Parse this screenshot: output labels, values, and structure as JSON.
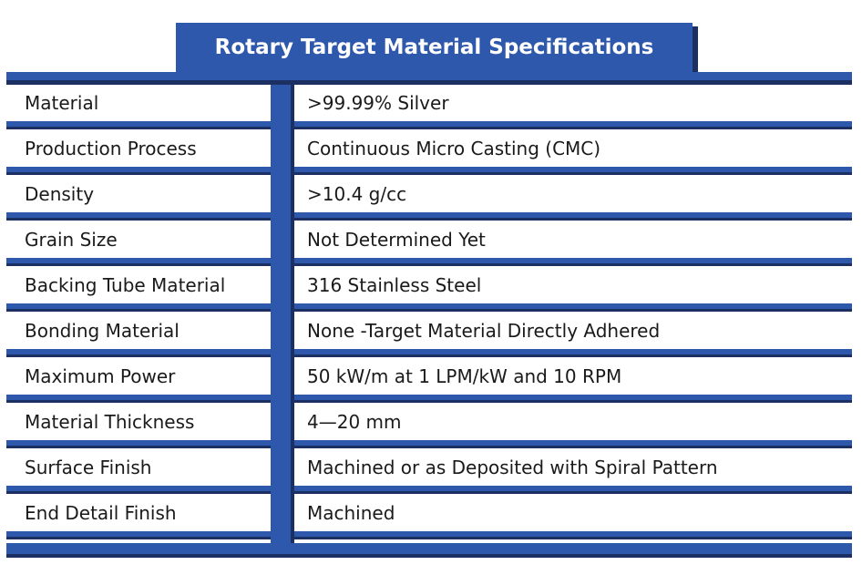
{
  "title": "Rotary Target Material Specifications",
  "colors": {
    "band": "#2e58ab",
    "band_shadow": "#1b2f63",
    "text": "#1a1a1a",
    "title_text": "#ffffff"
  },
  "rows": [
    {
      "label": "Material",
      "value": ">99.99% Silver"
    },
    {
      "label": "Production Process",
      "value": "Continuous Micro Casting (CMC)"
    },
    {
      "label": "Density",
      "value": ">10.4 g/cc"
    },
    {
      "label": "Grain Size",
      "value": "Not Determined Yet"
    },
    {
      "label": "Backing Tube Material",
      "value": "316 Stainless Steel"
    },
    {
      "label": "Bonding Material",
      "value": "None -Target Material Directly Adhered"
    },
    {
      "label": "Maximum Power",
      "value": "50 kW/m at 1 LPM/kW and 10 RPM"
    },
    {
      "label": "Material Thickness",
      "value": "4—20 mm"
    },
    {
      "label": "Surface Finish",
      "value": "Machined or as Deposited with Spiral Pattern"
    },
    {
      "label": "End Detail Finish",
      "value": "Machined"
    }
  ]
}
